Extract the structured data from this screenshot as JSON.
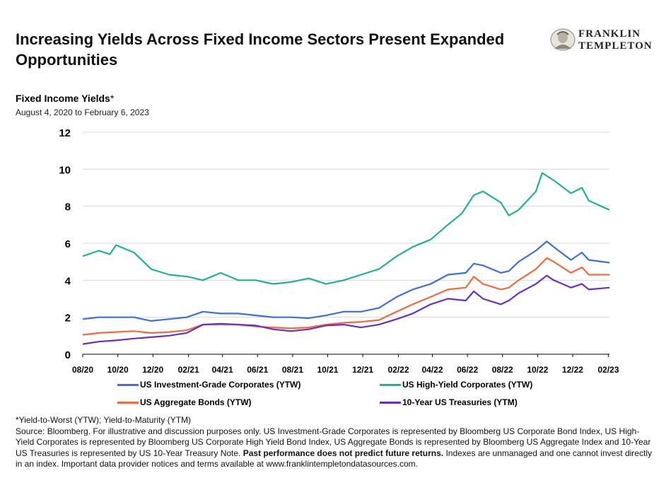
{
  "headline": "Increasing Yields Across Fixed Income Sectors Present Expanded Opportunities",
  "brand": {
    "line1": "FRANKLIN",
    "line2": "TEMPLETON"
  },
  "chart_title": "Fixed Income Yields",
  "chart_title_marker": "*",
  "date_range": "August 4, 2020 to February 6, 2023",
  "chart_data": {
    "type": "line",
    "title": "Fixed Income Yields",
    "subtitle": "August 4, 2020 to February 6, 2023",
    "xlabel": "",
    "ylabel": "",
    "ylim": [
      0,
      12
    ],
    "yticks": [
      0,
      2,
      4,
      6,
      8,
      10,
      12
    ],
    "xlim": [
      "2020-08-04",
      "2023-02-06"
    ],
    "x_tick_labels": [
      "08/20",
      "10/20",
      "12/20",
      "02/21",
      "04/21",
      "06/21",
      "08/21",
      "10/21",
      "12/21",
      "02/22",
      "04/22",
      "06/22",
      "08/22",
      "10/22",
      "12/22",
      "02/23"
    ],
    "x_tick_dates": [
      "2020-08-04",
      "2020-10-04",
      "2020-12-04",
      "2021-02-04",
      "2021-04-04",
      "2021-06-04",
      "2021-08-04",
      "2021-10-04",
      "2021-12-04",
      "2022-02-04",
      "2022-04-04",
      "2022-06-04",
      "2022-08-04",
      "2022-10-04",
      "2022-12-04",
      "2023-02-04"
    ],
    "grid": "horizontal",
    "legend_position": "bottom",
    "series": [
      {
        "name": "US Investment-Grade Corporates (YTW)",
        "color": "#3f6fdc",
        "x": [
          "2020-08-04",
          "2020-09-01",
          "2020-10-01",
          "2020-11-01",
          "2020-12-01",
          "2021-01-01",
          "2021-02-01",
          "2021-03-01",
          "2021-04-01",
          "2021-05-01",
          "2021-06-01",
          "2021-07-01",
          "2021-08-01",
          "2021-09-01",
          "2021-10-01",
          "2021-11-01",
          "2021-12-01",
          "2022-01-01",
          "2022-02-01",
          "2022-03-01",
          "2022-04-01",
          "2022-05-01",
          "2022-06-01",
          "2022-06-15",
          "2022-07-01",
          "2022-08-01",
          "2022-08-15",
          "2022-09-01",
          "2022-10-01",
          "2022-10-20",
          "2022-11-01",
          "2022-12-01",
          "2022-12-20",
          "2023-01-01",
          "2023-02-06"
        ],
        "values": [
          1.9,
          2.0,
          2.0,
          2.0,
          1.8,
          1.9,
          2.0,
          2.3,
          2.2,
          2.2,
          2.1,
          2.0,
          2.0,
          1.95,
          2.1,
          2.3,
          2.3,
          2.5,
          3.1,
          3.5,
          3.8,
          4.3,
          4.4,
          4.9,
          4.8,
          4.4,
          4.5,
          5.0,
          5.6,
          6.1,
          5.8,
          5.1,
          5.5,
          5.1,
          4.95
        ]
      },
      {
        "name": "US High-Yield Corporates (YTW)",
        "color": "#1db39a",
        "x": [
          "2020-08-04",
          "2020-09-01",
          "2020-09-20",
          "2020-10-01",
          "2020-11-01",
          "2020-12-01",
          "2021-01-01",
          "2021-02-01",
          "2021-03-01",
          "2021-04-01",
          "2021-05-01",
          "2021-06-01",
          "2021-07-01",
          "2021-08-01",
          "2021-09-01",
          "2021-10-01",
          "2021-11-01",
          "2021-12-01",
          "2022-01-01",
          "2022-02-01",
          "2022-03-01",
          "2022-04-01",
          "2022-05-01",
          "2022-05-25",
          "2022-06-15",
          "2022-07-01",
          "2022-08-01",
          "2022-08-15",
          "2022-09-01",
          "2022-10-01",
          "2022-10-12",
          "2022-11-01",
          "2022-12-01",
          "2022-12-20",
          "2023-01-01",
          "2023-02-06"
        ],
        "values": [
          5.3,
          5.6,
          5.4,
          5.9,
          5.5,
          4.6,
          4.3,
          4.2,
          4.0,
          4.4,
          4.0,
          4.0,
          3.8,
          3.9,
          4.1,
          3.8,
          4.0,
          4.3,
          4.6,
          5.3,
          5.8,
          6.2,
          7.0,
          7.6,
          8.6,
          8.8,
          8.2,
          7.5,
          7.8,
          8.8,
          9.8,
          9.4,
          8.7,
          9.0,
          8.3,
          7.8
        ]
      },
      {
        "name": "US Aggregate Bonds (YTW)",
        "color": "#f26a3d",
        "x": [
          "2020-08-04",
          "2020-09-01",
          "2020-10-01",
          "2020-11-01",
          "2020-12-01",
          "2021-01-01",
          "2021-02-01",
          "2021-03-01",
          "2021-04-01",
          "2021-05-01",
          "2021-06-01",
          "2021-07-01",
          "2021-08-01",
          "2021-09-01",
          "2021-10-01",
          "2021-11-01",
          "2021-12-01",
          "2022-01-01",
          "2022-02-01",
          "2022-03-01",
          "2022-04-01",
          "2022-05-01",
          "2022-06-01",
          "2022-06-15",
          "2022-07-01",
          "2022-08-01",
          "2022-08-15",
          "2022-09-01",
          "2022-10-01",
          "2022-10-20",
          "2022-11-01",
          "2022-12-01",
          "2022-12-20",
          "2023-01-01",
          "2023-02-06"
        ],
        "values": [
          1.05,
          1.15,
          1.2,
          1.25,
          1.15,
          1.2,
          1.3,
          1.6,
          1.6,
          1.6,
          1.5,
          1.45,
          1.4,
          1.45,
          1.6,
          1.7,
          1.75,
          1.85,
          2.3,
          2.7,
          3.1,
          3.5,
          3.6,
          4.2,
          3.8,
          3.5,
          3.6,
          4.0,
          4.6,
          5.2,
          5.0,
          4.4,
          4.7,
          4.3,
          4.3
        ]
      },
      {
        "name": "10-Year US Treasuries (YTM)",
        "color": "#6a2fc7",
        "x": [
          "2020-08-04",
          "2020-09-01",
          "2020-10-01",
          "2020-11-01",
          "2020-12-01",
          "2021-01-01",
          "2021-02-01",
          "2021-03-01",
          "2021-04-01",
          "2021-05-01",
          "2021-06-01",
          "2021-07-01",
          "2021-08-01",
          "2021-09-01",
          "2021-10-01",
          "2021-11-01",
          "2021-12-01",
          "2022-01-01",
          "2022-02-01",
          "2022-03-01",
          "2022-04-01",
          "2022-05-01",
          "2022-06-01",
          "2022-06-15",
          "2022-07-01",
          "2022-08-01",
          "2022-08-15",
          "2022-09-01",
          "2022-10-01",
          "2022-10-20",
          "2022-11-01",
          "2022-12-01",
          "2022-12-20",
          "2023-01-01",
          "2023-02-06"
        ],
        "values": [
          0.55,
          0.68,
          0.75,
          0.85,
          0.92,
          1.0,
          1.15,
          1.6,
          1.65,
          1.6,
          1.55,
          1.35,
          1.25,
          1.35,
          1.55,
          1.6,
          1.45,
          1.6,
          1.9,
          2.2,
          2.7,
          3.0,
          2.9,
          3.4,
          3.0,
          2.7,
          2.9,
          3.3,
          3.8,
          4.25,
          4.0,
          3.6,
          3.8,
          3.5,
          3.6
        ]
      }
    ]
  },
  "footnote": {
    "line1": "*Yield-to-Worst (YTW); Yield-to-Maturity (YTM)",
    "source_text": "Source: Bloomberg. For illustrative and discussion purposes only. US Investment-Grade Corporates is represented by Bloomberg US Corporate Bond Index, US High-Yield Corporates is represented by Bloomberg US Corporate High Yield Bond Index, US Aggregate Bonds is represented by Bloomberg US Aggregate Index and 10-Year US Treasuries is represented by US 10-Year Treasury Note.",
    "bold_text": "Past performance does not predict future returns.",
    "tail_text": "Indexes are unmanaged and one cannot invest directly in an index. Important data provider notices and terms available at www.franklintempletondatasources.com."
  }
}
